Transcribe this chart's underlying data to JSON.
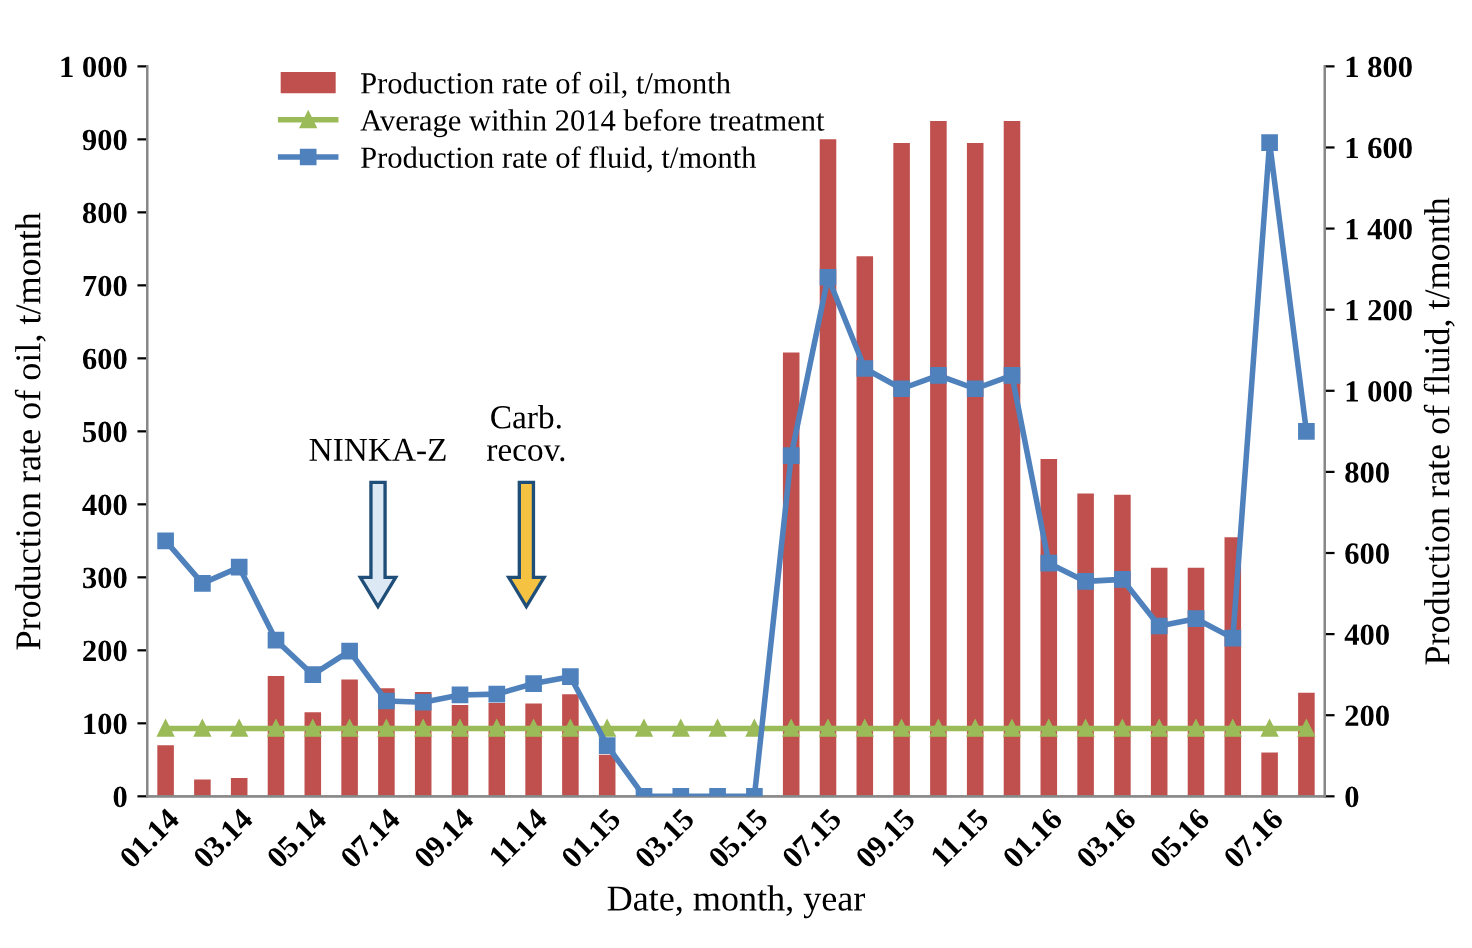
{
  "chart_data": {
    "type": "bar",
    "categories": [
      "01.14",
      null,
      "03.14",
      null,
      "05.14",
      null,
      "07.14",
      null,
      "09.14",
      null,
      "11.14",
      null,
      "01.15",
      null,
      "03.15",
      null,
      "05.15",
      null,
      "07.15",
      null,
      "09.15",
      null,
      "11.15",
      null,
      "01.16",
      null,
      "03.16",
      null,
      "05.16",
      null,
      "07.16",
      null
    ],
    "xlabel": "Date, month, year",
    "ylabel": "Production rate of oil, t/month",
    "y2label": "Production rate of fluid, t/month",
    "series": [
      {
        "name": "Production rate of oil, t/month",
        "color": "#c0504d",
        "values": [
          70,
          23,
          25,
          165,
          115,
          160,
          148,
          143,
          125,
          128,
          127,
          140,
          57,
          0,
          0,
          0,
          0,
          608,
          900,
          740,
          895,
          925,
          895,
          925,
          462,
          415,
          413,
          313,
          313,
          355,
          60,
          142
        ]
      },
      {
        "name": "Average within 2014 before treatment",
        "type": "line",
        "color": "#9bbb59",
        "marker": "triangle",
        "values": [
          93,
          93,
          93,
          93,
          93,
          93,
          93,
          93,
          93,
          93,
          93,
          93,
          93,
          93,
          93,
          93,
          93,
          93,
          93,
          93,
          93,
          93,
          93,
          93,
          93,
          93,
          93,
          93,
          93,
          93,
          93,
          93
        ]
      },
      {
        "name": "Production rate of fluid, t/month",
        "type": "line",
        "axis": "y2",
        "color": "#4f81bd",
        "marker": "square",
        "values": [
          630,
          525,
          565,
          385,
          300,
          358,
          235,
          232,
          250,
          252,
          278,
          295,
          125,
          0,
          0,
          0,
          0,
          840,
          1280,
          1055,
          1005,
          1038,
          1005,
          1038,
          575,
          530,
          535,
          420,
          438,
          390,
          1612,
          900
        ]
      }
    ],
    "ylim": [
      0,
      1000
    ],
    "yticks": [
      0,
      100,
      200,
      300,
      400,
      500,
      600,
      700,
      800,
      900,
      {
        "value": 1000,
        "label": "1 000"
      }
    ],
    "y2lim": [
      0,
      1800
    ],
    "y2ticks": [
      0,
      200,
      400,
      600,
      800,
      {
        "value": 1000,
        "label": "1 000"
      },
      {
        "value": 1200,
        "label": "1 200"
      },
      {
        "value": 1400,
        "label": "1 400"
      },
      {
        "value": 1600,
        "label": "1 600"
      },
      {
        "value": 1800,
        "label": "1 800"
      }
    ],
    "annotations": [
      "NINKA-Z",
      "Carb.\nrecov."
    ],
    "legend": "top left",
    "grid": false
  }
}
